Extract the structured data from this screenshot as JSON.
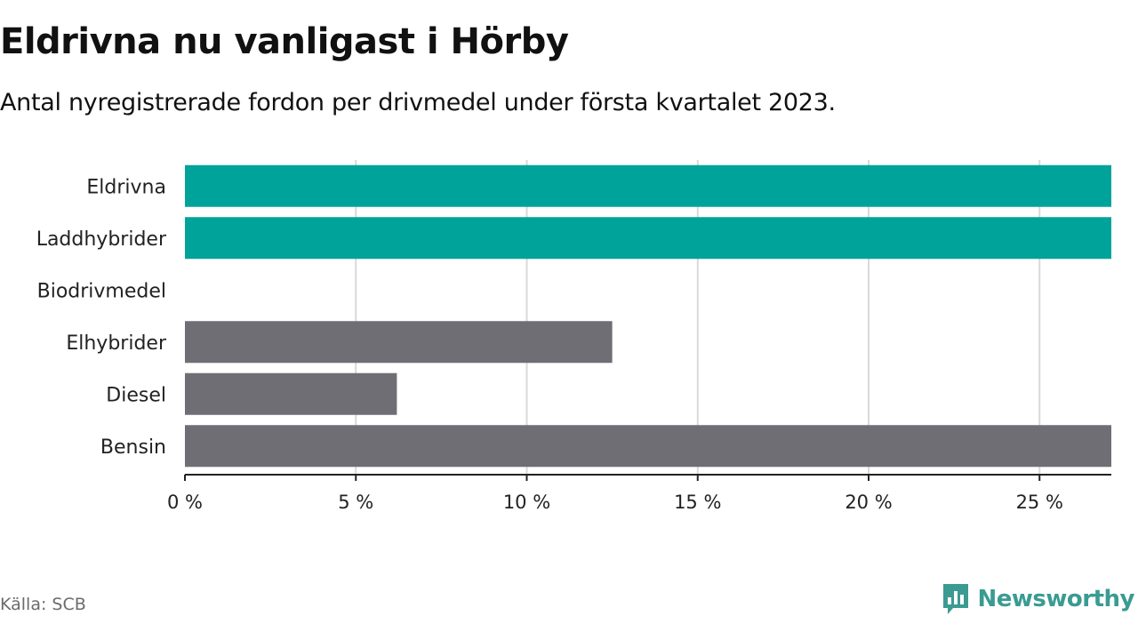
{
  "header": {
    "title": "Eldrivna nu vanligast i Hörby",
    "subtitle": "Antal nyregistrerade fordon per drivmedel under första kvartalet 2023."
  },
  "footer": {
    "source": "Källa: SCB",
    "brand": "Newsworthy",
    "brand_icon": "chart-bubble-icon"
  },
  "colors": {
    "highlight": "#00a39a",
    "default": "#6f6e74",
    "grid": "#d9d9d9",
    "axis": "#222222",
    "brand": "#3a9b92"
  },
  "chart_data": {
    "type": "bar",
    "orientation": "horizontal",
    "categories": [
      "Eldrivna",
      "Laddhybrider",
      "Biodrivmedel",
      "Elhybrider",
      "Diesel",
      "Bensin"
    ],
    "values": [
      27.1,
      27.1,
      0,
      12.5,
      6.2,
      27.1
    ],
    "highlight": [
      true,
      true,
      false,
      false,
      false,
      false
    ],
    "xlim": [
      0,
      27.1
    ],
    "xticks": [
      0,
      5,
      10,
      15,
      20,
      25
    ],
    "xtick_labels": [
      "0 %",
      "5 %",
      "10 %",
      "15 %",
      "20 %",
      "25 %"
    ],
    "grid": true,
    "legend": false
  }
}
